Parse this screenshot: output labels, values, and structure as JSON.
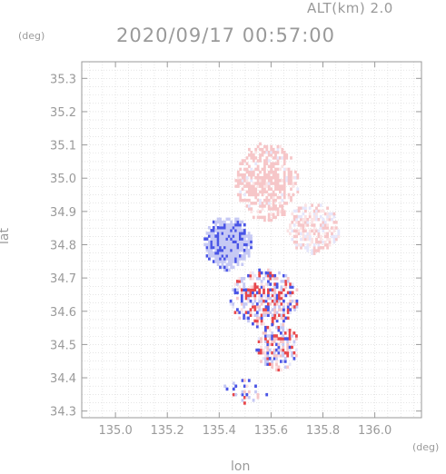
{
  "header": {
    "altitude_label": "ALT(km) 2.0",
    "timestamp": "2020/09/17 00:57:00"
  },
  "chart_data": {
    "type": "heatmap",
    "title": "2020/09/17 00:57:00",
    "subtitle": "ALT(km) 2.0",
    "xlabel": "lon",
    "ylabel": "lat",
    "xunit": "(deg)",
    "yunit": "(deg)",
    "xlim": [
      134.87,
      136.18
    ],
    "ylim": [
      34.28,
      35.35
    ],
    "xticks": [
      "135.0",
      "135.2",
      "135.4",
      "135.6",
      "135.8",
      "136.0"
    ],
    "yticks": [
      "34.3",
      "34.4",
      "34.5",
      "34.6",
      "34.7",
      "34.8",
      "34.9",
      "35.0",
      "35.1",
      "35.2",
      "35.3"
    ],
    "grid": true,
    "colors": {
      "axis": "#9a9a9a",
      "tick_text": "#9a9a9a",
      "positive": "#e8484c",
      "negative": "#4a55e6",
      "weak_positive": "#f6c6c8",
      "weak_negative": "#c6c9f4"
    },
    "regions": [
      {
        "name": "large-negative-blob",
        "lon": [
          135.34,
          135.52
        ],
        "lat": [
          34.72,
          34.88
        ],
        "value": -0.35
      },
      {
        "name": "northern-positive-patches",
        "lon": [
          135.46,
          135.7
        ],
        "lat": [
          34.87,
          35.1
        ],
        "value": 0.25
      },
      {
        "name": "central-mixed-area",
        "lon": [
          135.44,
          135.7
        ],
        "lat": [
          34.55,
          34.72
        ],
        "value": 0.0
      },
      {
        "name": "southern-mixed-strip",
        "lon": [
          135.54,
          135.7
        ],
        "lat": [
          34.42,
          34.56
        ],
        "value": 0.0
      },
      {
        "name": "eastern-mixed-fringe",
        "lon": [
          135.66,
          135.86
        ],
        "lat": [
          34.77,
          34.92
        ],
        "value": 0.1
      },
      {
        "name": "southwest-scattered-cells",
        "lon": [
          135.4,
          135.58
        ],
        "lat": [
          34.32,
          34.39
        ],
        "value": 0.0
      }
    ]
  }
}
